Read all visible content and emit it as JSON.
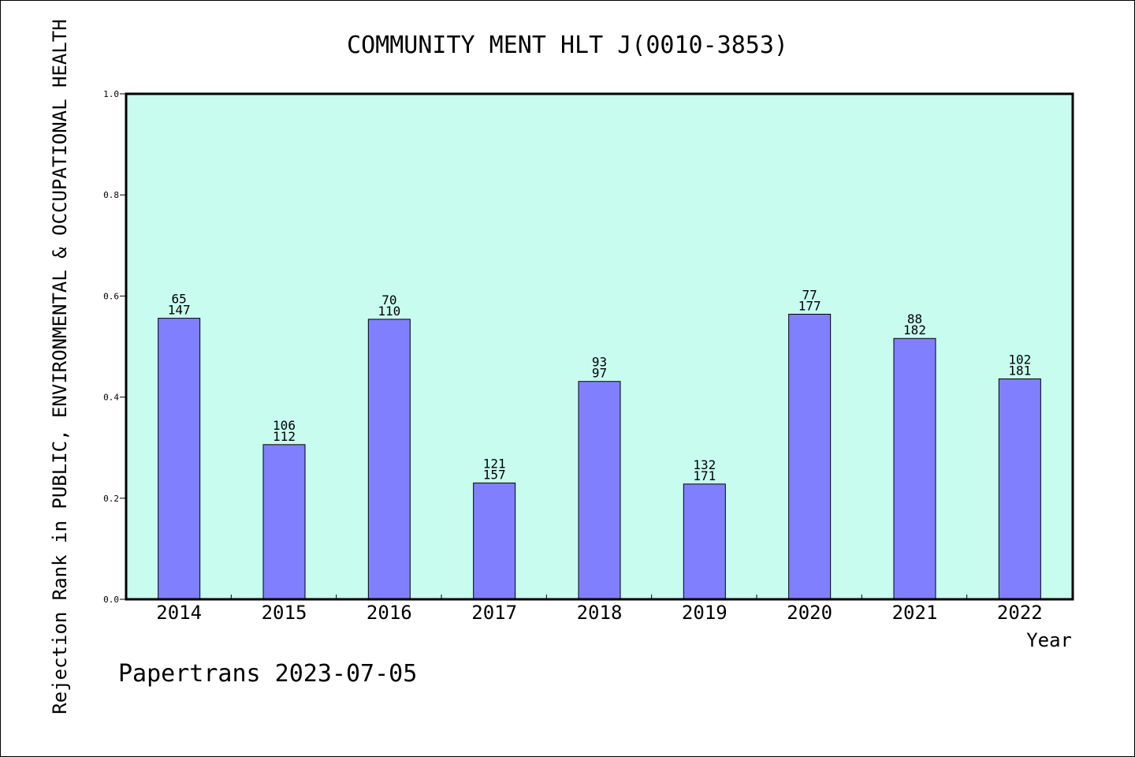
{
  "chart_data": {
    "type": "bar",
    "title": "COMMUNITY MENT HLT J(0010-3853)",
    "xlabel": "Year",
    "ylabel": "Rejection Rank in PUBLIC, ENVIRONMENTAL & OCCUPATIONAL HEALTH",
    "categories": [
      "2014",
      "2015",
      "2016",
      "2017",
      "2018",
      "2019",
      "2020",
      "2021",
      "2022"
    ],
    "values": [
      0.556,
      0.306,
      0.554,
      0.23,
      0.431,
      0.228,
      0.564,
      0.516,
      0.436
    ],
    "labels_top": [
      "65",
      "106",
      "70",
      "121",
      "93",
      "132",
      "77",
      "88",
      "102"
    ],
    "labels_bottom": [
      "147",
      "112",
      "110",
      "157",
      "97",
      "171",
      "177",
      "182",
      "181"
    ],
    "ylim": [
      0,
      1.0
    ],
    "yticks": [
      "0.0",
      "0.2",
      "0.4",
      "0.6",
      "0.8",
      "1.0"
    ],
    "grid": false,
    "plot_background": "#c8fcef",
    "bar_color": "#8080ff"
  },
  "footer": "Papertrans 2023-07-05"
}
